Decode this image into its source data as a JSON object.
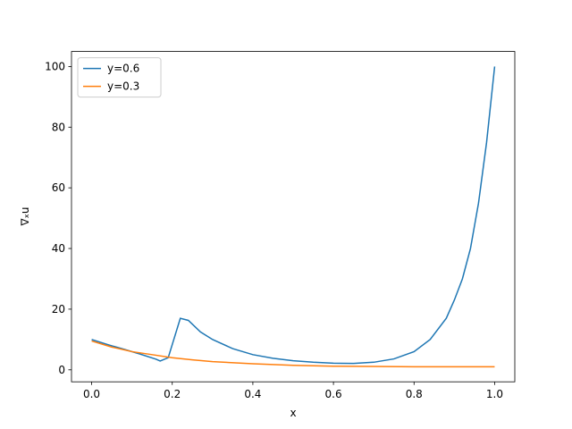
{
  "chart_data": {
    "type": "line",
    "xlabel": "x",
    "ylabel": "∇ₓu",
    "xlim": [
      -0.05,
      1.05
    ],
    "ylim": [
      -3.95,
      104.95
    ],
    "xticks": [
      {
        "value": 0,
        "label": "0.0"
      },
      0.2,
      0.4,
      0.6,
      0.8,
      {
        "value": 1,
        "label": "1.0"
      }
    ],
    "yticks": [
      0,
      20,
      40,
      60,
      80,
      100
    ],
    "legend": "upper left",
    "series": [
      {
        "name": "y=0.6",
        "color": "#1f77b4",
        "x": [
          0,
          0.04,
          0.08,
          0.12,
          0.16,
          0.17,
          0.19,
          0.22,
          0.24,
          0.27,
          0.3,
          0.35,
          0.4,
          0.45,
          0.5,
          0.55,
          0.6,
          0.65,
          0.7,
          0.75,
          0.8,
          0.84,
          0.88,
          0.9,
          0.92,
          0.94,
          0.96,
          0.98,
          1.0
        ],
        "values": [
          10,
          8.3,
          6.8,
          5.2,
          3.5,
          2.9,
          4.0,
          17,
          16.3,
          12.5,
          10,
          7,
          5,
          3.8,
          3,
          2.5,
          2.2,
          2.1,
          2.5,
          3.6,
          6,
          10,
          17,
          23,
          30,
          40,
          55,
          75,
          100
        ]
      },
      {
        "name": "y=0.3",
        "color": "#ff7f0e",
        "x": [
          0,
          0.05,
          0.1,
          0.15,
          0.2,
          0.25,
          0.3,
          0.4,
          0.5,
          0.6,
          0.7,
          0.8,
          0.9,
          1.0
        ],
        "values": [
          9.5,
          7.5,
          6,
          5,
          4,
          3.3,
          2.7,
          2,
          1.5,
          1.2,
          1.1,
          1.0,
          1.0,
          1.0
        ]
      }
    ]
  }
}
